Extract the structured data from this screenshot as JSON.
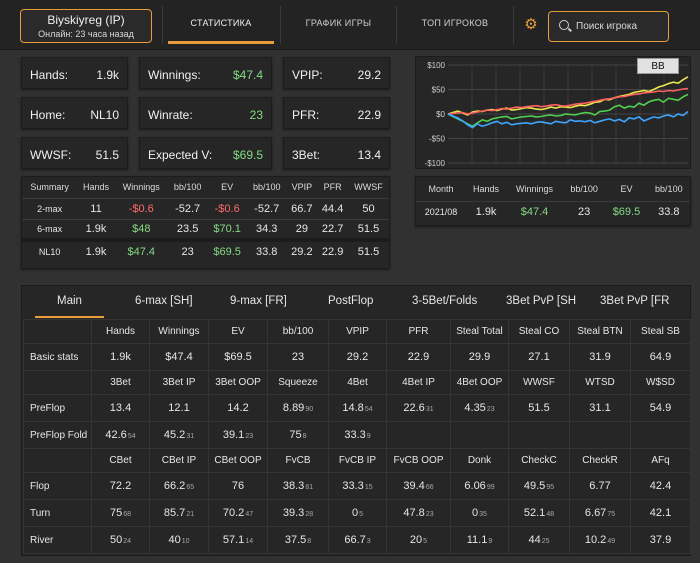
{
  "header": {
    "player_name": "Biyskiyreg (IP)",
    "online": "Онлайн: 23 часа назад",
    "tabs": [
      "СТАТИСТИКА",
      "ГРАФИК ИГРЫ",
      "ТОП ИГРОКОВ"
    ],
    "search_placeholder": "Поиск игрока",
    "icons": [
      "gear-icon",
      "search-icon"
    ]
  },
  "stats": [
    {
      "label": "Hands:",
      "value": "1.9k"
    },
    {
      "label": "Winnings:",
      "value": "$47.4",
      "color": "#84d984"
    },
    {
      "label": "VPIP:",
      "value": "29.2"
    },
    {
      "label": "Home:",
      "value": "NL10"
    },
    {
      "label": "Winrate:",
      "value": "23",
      "color": "#84d984"
    },
    {
      "label": "PFR:",
      "value": "22.9"
    },
    {
      "label": "WWSF:",
      "value": "51.5"
    },
    {
      "label": "Expected V:",
      "value": "$69.5",
      "color": "#84d984"
    },
    {
      "label": "3Bet:",
      "value": "13.4"
    }
  ],
  "summary": {
    "headers": [
      "Summary",
      "Hands",
      "Winnings",
      "bb/100",
      "EV",
      "bb/100",
      "VPIP",
      "PFR",
      "WWSF"
    ],
    "rows": [
      [
        "2-max",
        "11",
        "-$0.6",
        "-52.7",
        "-$0.6",
        "-52.7",
        "66.7",
        "44.4",
        "50"
      ],
      [
        "6-max",
        "1.9k",
        "$48",
        "23.5",
        "$70.1",
        "34.3",
        "29",
        "22.7",
        "51.5"
      ],
      [
        "NL10",
        "1.9k",
        "$47.4",
        "23",
        "$69.5",
        "33.8",
        "29.2",
        "22.9",
        "51.5"
      ]
    ]
  },
  "month_table": {
    "headers": [
      "Month",
      "Hands",
      "Winnings",
      "bb/100",
      "EV",
      "bb/100"
    ],
    "rows": [
      [
        "2021/08",
        "1.9k",
        "$47.4",
        "23",
        "$69.5",
        "33.8"
      ]
    ]
  },
  "chart_data": {
    "type": "line",
    "badge": "BB",
    "y_ticks": [
      "$100",
      "$50",
      "$0",
      "-$50",
      "-$100"
    ],
    "ylim": [
      -100,
      100
    ],
    "x": [
      0,
      1,
      2,
      3,
      4,
      5,
      6,
      7,
      8,
      9,
      10,
      11,
      12,
      13,
      14,
      15,
      16,
      17,
      18,
      19,
      20,
      21,
      22,
      23,
      24,
      25,
      26,
      27,
      28,
      29,
      30,
      31,
      32,
      33,
      34,
      35,
      36,
      37,
      38,
      39,
      40,
      41,
      42,
      43,
      44,
      45,
      46,
      47,
      48,
      49
    ],
    "series": [
      {
        "name": "yellow",
        "color": "#e8e84a",
        "values": [
          0,
          3,
          6,
          2,
          -2,
          4,
          6,
          5,
          8,
          9,
          7,
          10,
          12,
          8,
          9,
          11,
          13,
          12,
          10,
          9,
          11,
          14,
          12,
          15,
          14,
          13,
          16,
          18,
          17,
          20,
          24,
          25,
          30,
          29,
          33,
          36,
          38,
          40,
          44,
          46,
          48,
          46,
          50,
          55,
          58,
          62,
          65,
          63,
          70,
          76
        ]
      },
      {
        "name": "red",
        "color": "#ff6060",
        "values": [
          0,
          1,
          2,
          3,
          0,
          2,
          4,
          6,
          8,
          7,
          9,
          11,
          10,
          12,
          14,
          13,
          15,
          16,
          17,
          15,
          16,
          18,
          19,
          17,
          16,
          18,
          20,
          21,
          22,
          24,
          26,
          28,
          30,
          31,
          33,
          35,
          36,
          38,
          40,
          41,
          43,
          44,
          45,
          47,
          46,
          48,
          47,
          49,
          51,
          52
        ]
      },
      {
        "name": "green",
        "color": "#50d050",
        "values": [
          0,
          -5,
          -10,
          -15,
          -20,
          -25,
          -18,
          -12,
          -15,
          -10,
          -8,
          -6,
          -5,
          -10,
          -8,
          -6,
          -5,
          -4,
          -6,
          -5,
          -3,
          -2,
          -4,
          -3,
          0,
          -1,
          -2,
          1,
          3,
          2,
          -2,
          5,
          6,
          8,
          15,
          18,
          12,
          16,
          14,
          22,
          18,
          25,
          28,
          30,
          24,
          32,
          30,
          28,
          35,
          40
        ]
      },
      {
        "name": "blue",
        "color": "#3ea6ff",
        "values": [
          0,
          -4,
          -8,
          -14,
          -22,
          -28,
          -20,
          -25,
          -22,
          -18,
          -15,
          -20,
          -17,
          -22,
          -20,
          -19,
          -18,
          -20,
          -17,
          -16,
          -18,
          -20,
          -15,
          -17,
          -18,
          -12,
          -15,
          -14,
          -16,
          -13,
          -18,
          -15,
          -12,
          -10,
          -14,
          -11,
          -16,
          -8,
          -10,
          -6,
          -14,
          -10,
          -6,
          -8,
          -4,
          -2,
          -6,
          0,
          -3,
          5
        ]
      }
    ]
  },
  "sub_tabs": [
    "Main",
    "6-max [SH]",
    "9-max [FR]",
    "PostFlop",
    "3-5Bet/Folds",
    "3Bet PvP [SH",
    "3Bet PvP [FR"
  ],
  "stats_table": {
    "sections": [
      {
        "headers": [
          "",
          "Hands",
          "Winnings",
          "EV",
          "bb/100",
          "VPIP",
          "PFR",
          "Steal Total",
          "Steal CO",
          "Steal BTN",
          "Steal SB"
        ],
        "rows": [
          {
            "label": "Basic stats",
            "cells": [
              [
                "1.9k",
                ""
              ],
              [
                "$47.4",
                ""
              ],
              [
                "$69.5",
                ""
              ],
              [
                "23",
                ""
              ],
              [
                "29.2",
                ""
              ],
              [
                "22.9",
                ""
              ],
              [
                "29.9",
                ""
              ],
              [
                "27.1",
                ""
              ],
              [
                "31.9",
                ""
              ],
              [
                "64.9",
                ""
              ]
            ]
          }
        ]
      },
      {
        "headers": [
          "",
          "3Bet",
          "3Bet IP",
          "3Bet OOP",
          "Squeeze",
          "4Bet",
          "4Bet IP",
          "4Bet OOP",
          "WWSF",
          "WTSD",
          "W$SD"
        ],
        "rows": [
          {
            "label": "PreFlop",
            "cells": [
              [
                "13.4",
                ""
              ],
              [
                "12.1",
                ""
              ],
              [
                "14.2",
                ""
              ],
              [
                "8.89",
                "90"
              ],
              [
                "14.8",
                "54"
              ],
              [
                "22.6",
                "31"
              ],
              [
                "4.35",
                "23"
              ],
              [
                "51.5",
                ""
              ],
              [
                "31.1",
                ""
              ],
              [
                "54.9",
                ""
              ]
            ]
          },
          {
            "label": "PreFlop Fold",
            "cells": [
              [
                "42.6",
                "54"
              ],
              [
                "45.2",
                "31"
              ],
              [
                "39.1",
                "23"
              ],
              [
                "75",
                "8"
              ],
              [
                "33.3",
                "9"
              ],
              [
                "",
                ""
              ],
              [
                "",
                ""
              ],
              [
                "",
                ""
              ],
              [
                "",
                ""
              ],
              [
                "",
                ""
              ]
            ]
          }
        ]
      },
      {
        "headers": [
          "",
          "CBet",
          "CBet IP",
          "CBet OOP",
          "FvCB",
          "FvCB IP",
          "FvCB OOP",
          "Donk",
          "CheckC",
          "CheckR",
          "AFq"
        ],
        "rows": [
          {
            "label": "Flop",
            "cells": [
              [
                "72.2",
                ""
              ],
              [
                "66.2",
                "65"
              ],
              [
                "76",
                ""
              ],
              [
                "38.3",
                "81"
              ],
              [
                "33.3",
                "15"
              ],
              [
                "39.4",
                "66"
              ],
              [
                "6.06",
                "99"
              ],
              [
                "49.5",
                "95"
              ],
              [
                "6.77",
                ""
              ],
              [
                "42.4",
                ""
              ]
            ]
          },
          {
            "label": "Turn",
            "cells": [
              [
                "75",
                "68"
              ],
              [
                "85.7",
                "21"
              ],
              [
                "70.2",
                "47"
              ],
              [
                "39.3",
                "28"
              ],
              [
                "0",
                "5"
              ],
              [
                "47.8",
                "23"
              ],
              [
                "0",
                "35"
              ],
              [
                "52.1",
                "48"
              ],
              [
                "6.67",
                "75"
              ],
              [
                "42.1",
                ""
              ]
            ]
          },
          {
            "label": "River",
            "cells": [
              [
                "50",
                "24"
              ],
              [
                "40",
                "10"
              ],
              [
                "57.1",
                "14"
              ],
              [
                "37.5",
                "8"
              ],
              [
                "66.7",
                "3"
              ],
              [
                "20",
                "5"
              ],
              [
                "11.1",
                "9"
              ],
              [
                "44",
                "25"
              ],
              [
                "10.2",
                "49"
              ],
              [
                "37.9",
                ""
              ]
            ]
          }
        ]
      }
    ]
  }
}
